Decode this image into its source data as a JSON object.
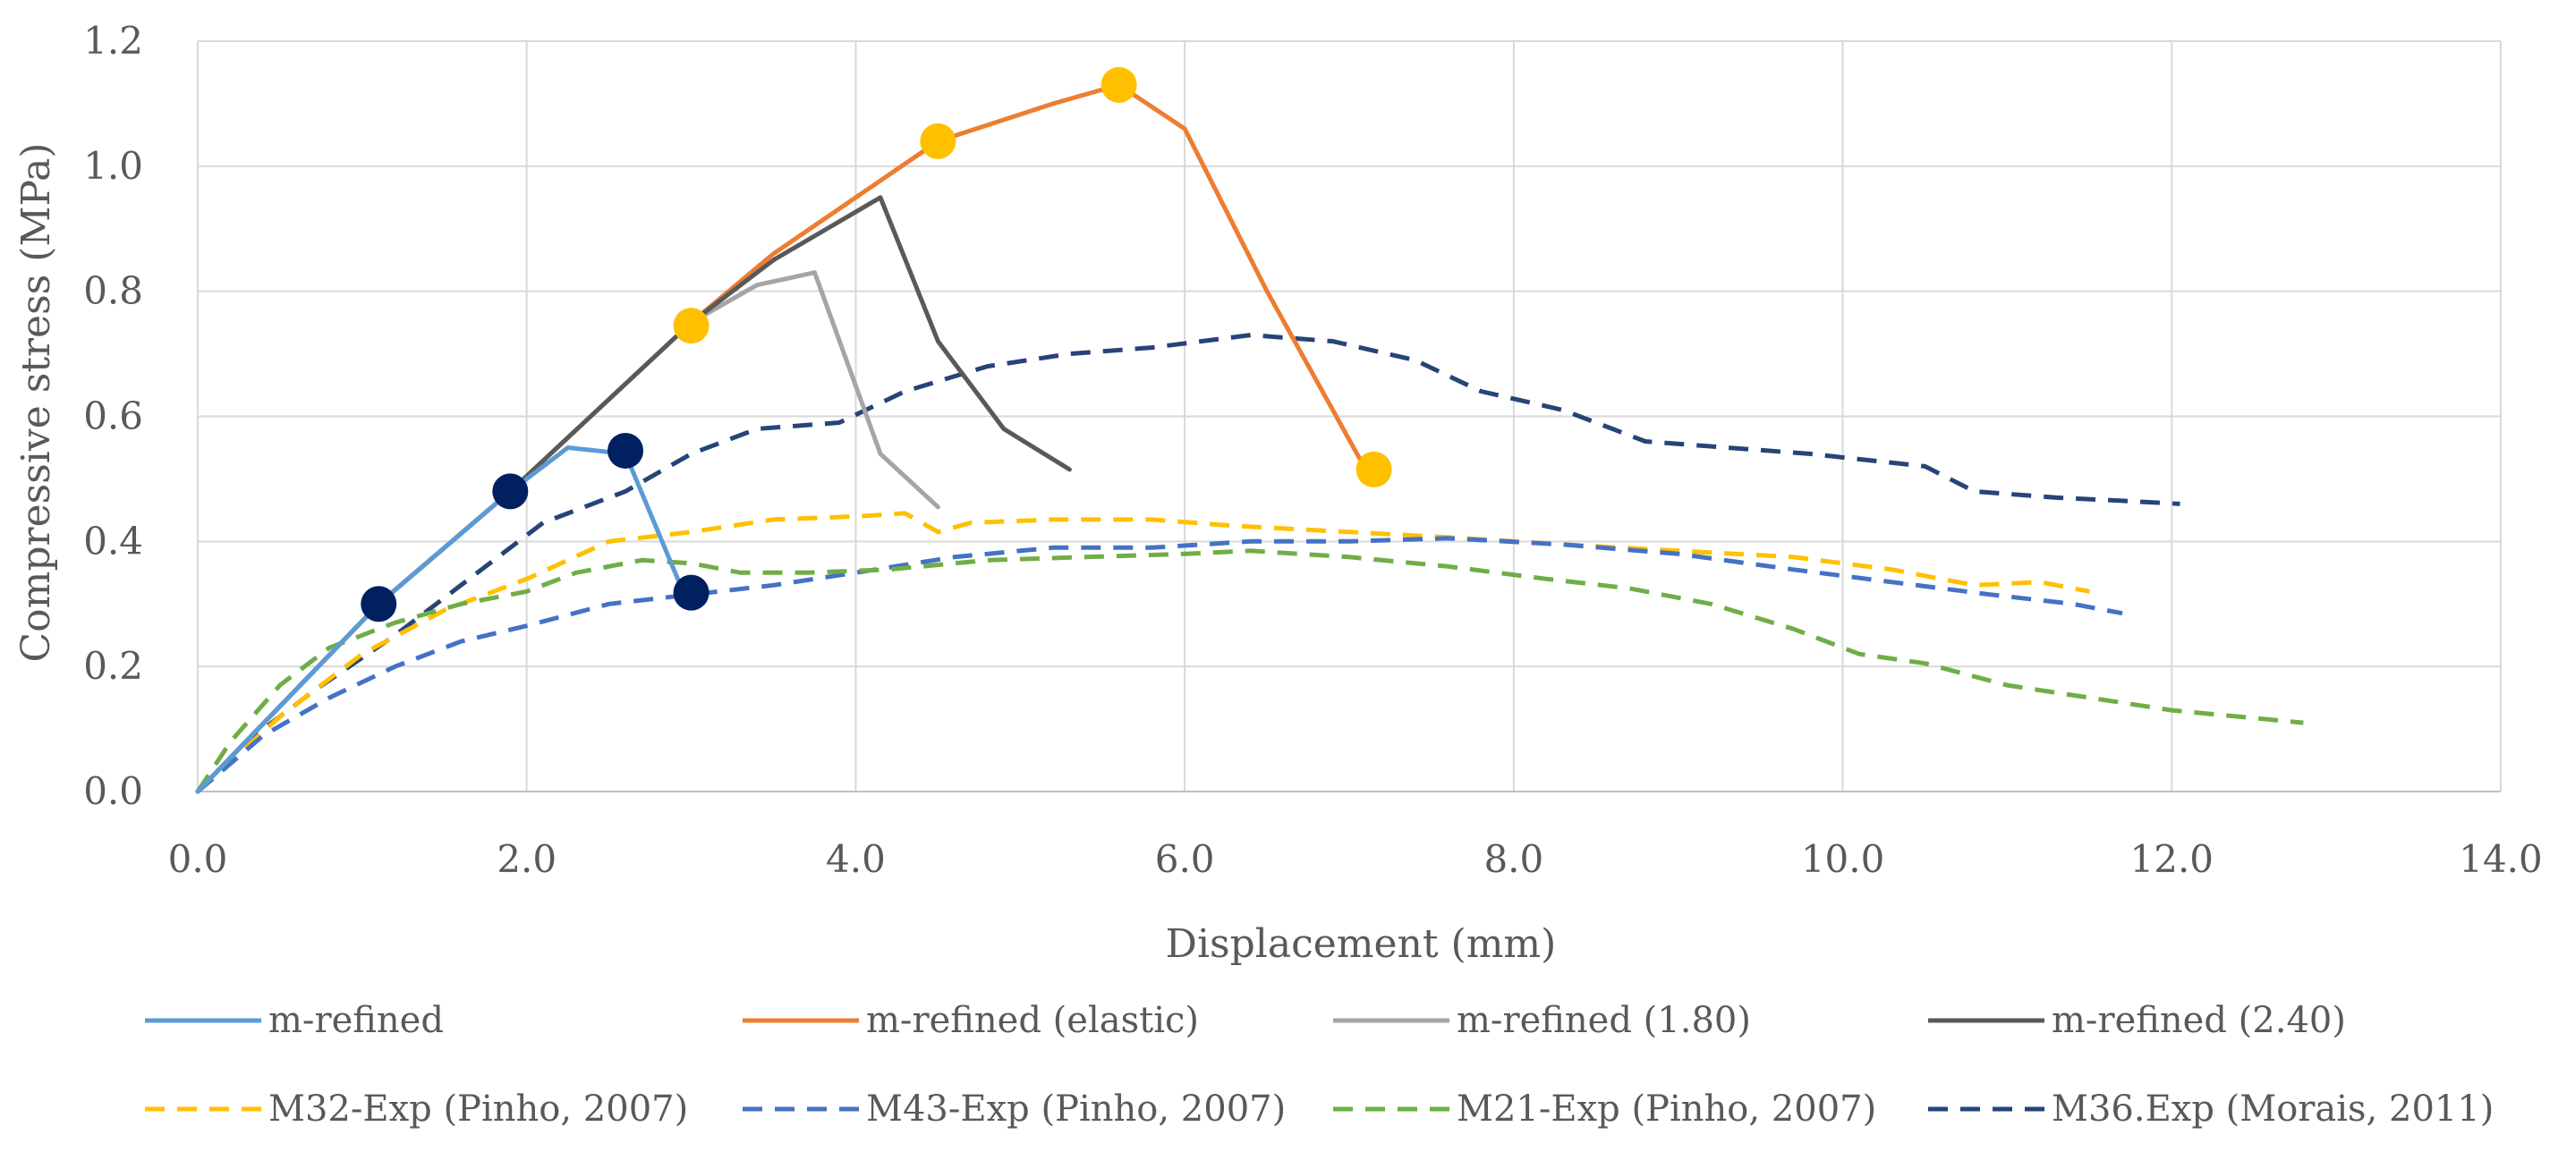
{
  "chart_data": {
    "type": "line",
    "title": "",
    "xlabel": "Displacement  (mm)",
    "ylabel": "Compressive  stress  (MPa)",
    "xlim": [
      0,
      14
    ],
    "ylim": [
      0,
      1.2
    ],
    "xticks": [
      0,
      2,
      4,
      6,
      8,
      10,
      12,
      14
    ],
    "yticks": [
      0,
      0.2,
      0.4,
      0.6,
      0.8,
      1.0,
      1.2
    ],
    "xtick_labels": [
      "0.0",
      "2.0",
      "4.0",
      "6.0",
      "8.0",
      "10.0",
      "12.0",
      "14.0"
    ],
    "ytick_labels": [
      "0.0",
      "0.2",
      "0.4",
      "0.6",
      "0.8",
      "1.0",
      "1.2"
    ],
    "grid": true,
    "legend_position": "bottom",
    "series": [
      {
        "name": "M36.Exp (Morais, 2011)",
        "color": "#264478",
        "dash": true,
        "x": [
          0,
          0.3,
          0.7,
          1.2,
          1.7,
          2.1,
          2.6,
          3.0,
          3.4,
          3.9,
          4.3,
          4.8,
          5.3,
          5.8,
          6.4,
          6.9,
          7.4,
          7.8,
          8.3,
          8.8,
          9.3,
          9.8,
          10.5,
          10.8,
          11.3,
          11.7,
          12.05
        ],
        "y": [
          0,
          0.08,
          0.16,
          0.25,
          0.35,
          0.43,
          0.48,
          0.54,
          0.58,
          0.59,
          0.64,
          0.68,
          0.7,
          0.71,
          0.73,
          0.72,
          0.69,
          0.64,
          0.61,
          0.56,
          0.55,
          0.54,
          0.52,
          0.48,
          0.47,
          0.465,
          0.46
        ]
      },
      {
        "name": "M32-Exp (Pinho, 2007)",
        "color": "#FFC000",
        "dash": true,
        "x": [
          0,
          0.5,
          1.0,
          1.5,
          2.0,
          2.5,
          3.0,
          3.5,
          4.0,
          4.3,
          4.5,
          4.7,
          5.2,
          5.8,
          6.3,
          7.0,
          7.7,
          8.3,
          9.0,
          9.7,
          10.3,
          10.8,
          11.2,
          11.5
        ],
        "y": [
          0,
          0.12,
          0.22,
          0.29,
          0.34,
          0.4,
          0.415,
          0.435,
          0.44,
          0.445,
          0.415,
          0.43,
          0.435,
          0.435,
          0.425,
          0.415,
          0.405,
          0.395,
          0.385,
          0.375,
          0.355,
          0.33,
          0.335,
          0.32
        ]
      },
      {
        "name": "M43-Exp (Pinho, 2007)",
        "color": "#4472C4",
        "dash": true,
        "x": [
          0,
          0.4,
          0.8,
          1.2,
          1.6,
          2.0,
          2.5,
          3.0,
          3.5,
          4.0,
          4.6,
          5.2,
          5.8,
          6.4,
          7.0,
          7.6,
          8.3,
          9.0,
          9.7,
          10.3,
          10.9,
          11.4,
          11.7
        ],
        "y": [
          0,
          0.09,
          0.15,
          0.2,
          0.24,
          0.265,
          0.3,
          0.315,
          0.33,
          0.35,
          0.375,
          0.39,
          0.39,
          0.4,
          0.4,
          0.405,
          0.395,
          0.38,
          0.355,
          0.335,
          0.315,
          0.3,
          0.285
        ]
      },
      {
        "name": "M21-Exp (Pinho, 2007)",
        "color": "#70AD47",
        "dash": true,
        "x": [
          0,
          0.2,
          0.5,
          0.8,
          1.2,
          1.6,
          2.0,
          2.3,
          2.7,
          3.0,
          3.3,
          3.7,
          4.2,
          4.8,
          5.4,
          6.0,
          6.4,
          7.0,
          7.6,
          8.2,
          8.7,
          9.2,
          9.7,
          10.1,
          10.5,
          11.0,
          11.5,
          12.0,
          12.8
        ],
        "y": [
          0,
          0.08,
          0.17,
          0.23,
          0.27,
          0.3,
          0.32,
          0.35,
          0.37,
          0.365,
          0.35,
          0.35,
          0.355,
          0.37,
          0.375,
          0.38,
          0.385,
          0.375,
          0.36,
          0.34,
          0.325,
          0.3,
          0.26,
          0.22,
          0.205,
          0.17,
          0.15,
          0.13,
          0.11
        ]
      },
      {
        "name": "m-refined (elastic)",
        "color": "#ED7D31",
        "dash": false,
        "x": [
          0,
          1.1,
          1.9,
          3.0,
          3.5,
          4.0,
          4.5,
          5.2,
          5.6,
          6.0,
          6.5,
          7.1
        ],
        "y": [
          0,
          0.3,
          0.48,
          0.75,
          0.86,
          0.95,
          1.04,
          1.1,
          1.13,
          1.06,
          0.8,
          0.515
        ]
      },
      {
        "name": "m-refined (1.80)",
        "color": "#A5A5A5",
        "dash": false,
        "x": [
          0,
          1.1,
          1.9,
          3.0,
          3.4,
          3.75,
          4.15,
          4.5
        ],
        "y": [
          0,
          0.3,
          0.48,
          0.75,
          0.81,
          0.83,
          0.54,
          0.455
        ]
      },
      {
        "name": "m-refined (2.40)",
        "color": "#595959",
        "dash": false,
        "x": [
          0,
          1.1,
          1.9,
          3.0,
          3.5,
          4.15,
          4.5,
          4.9,
          5.3
        ],
        "y": [
          0,
          0.3,
          0.48,
          0.75,
          0.85,
          0.95,
          0.72,
          0.58,
          0.515
        ]
      },
      {
        "name": "m-refined",
        "color": "#5B9BD5",
        "dash": false,
        "x": [
          0,
          1.1,
          1.9,
          2.25,
          2.6,
          2.95
        ],
        "y": [
          0,
          0.3,
          0.48,
          0.55,
          0.54,
          0.32
        ]
      }
    ],
    "markers": [
      {
        "color": "#FFC000",
        "x": [
          3.0,
          4.5,
          5.6,
          7.15
        ],
        "y": [
          0.745,
          1.04,
          1.13,
          0.515
        ]
      },
      {
        "color": "#002060",
        "x": [
          1.1,
          1.9,
          2.6,
          3.0
        ],
        "y": [
          0.3,
          0.48,
          0.545,
          0.318
        ]
      }
    ],
    "legend": [
      {
        "label": "m-refined",
        "color": "#5B9BD5",
        "dash": false
      },
      {
        "label": "m-refined (elastic)",
        "color": "#ED7D31",
        "dash": false
      },
      {
        "label": "m-refined (1.80)",
        "color": "#A5A5A5",
        "dash": false
      },
      {
        "label": "m-refined (2.40)",
        "color": "#595959",
        "dash": false
      },
      {
        "label": "M32-Exp (Pinho, 2007)",
        "color": "#FFC000",
        "dash": true
      },
      {
        "label": "M43-Exp (Pinho, 2007)",
        "color": "#4472C4",
        "dash": true
      },
      {
        "label": "M21-Exp (Pinho, 2007)",
        "color": "#70AD47",
        "dash": true
      },
      {
        "label": "M36.Exp (Morais, 2011)",
        "color": "#264478",
        "dash": true
      }
    ]
  }
}
